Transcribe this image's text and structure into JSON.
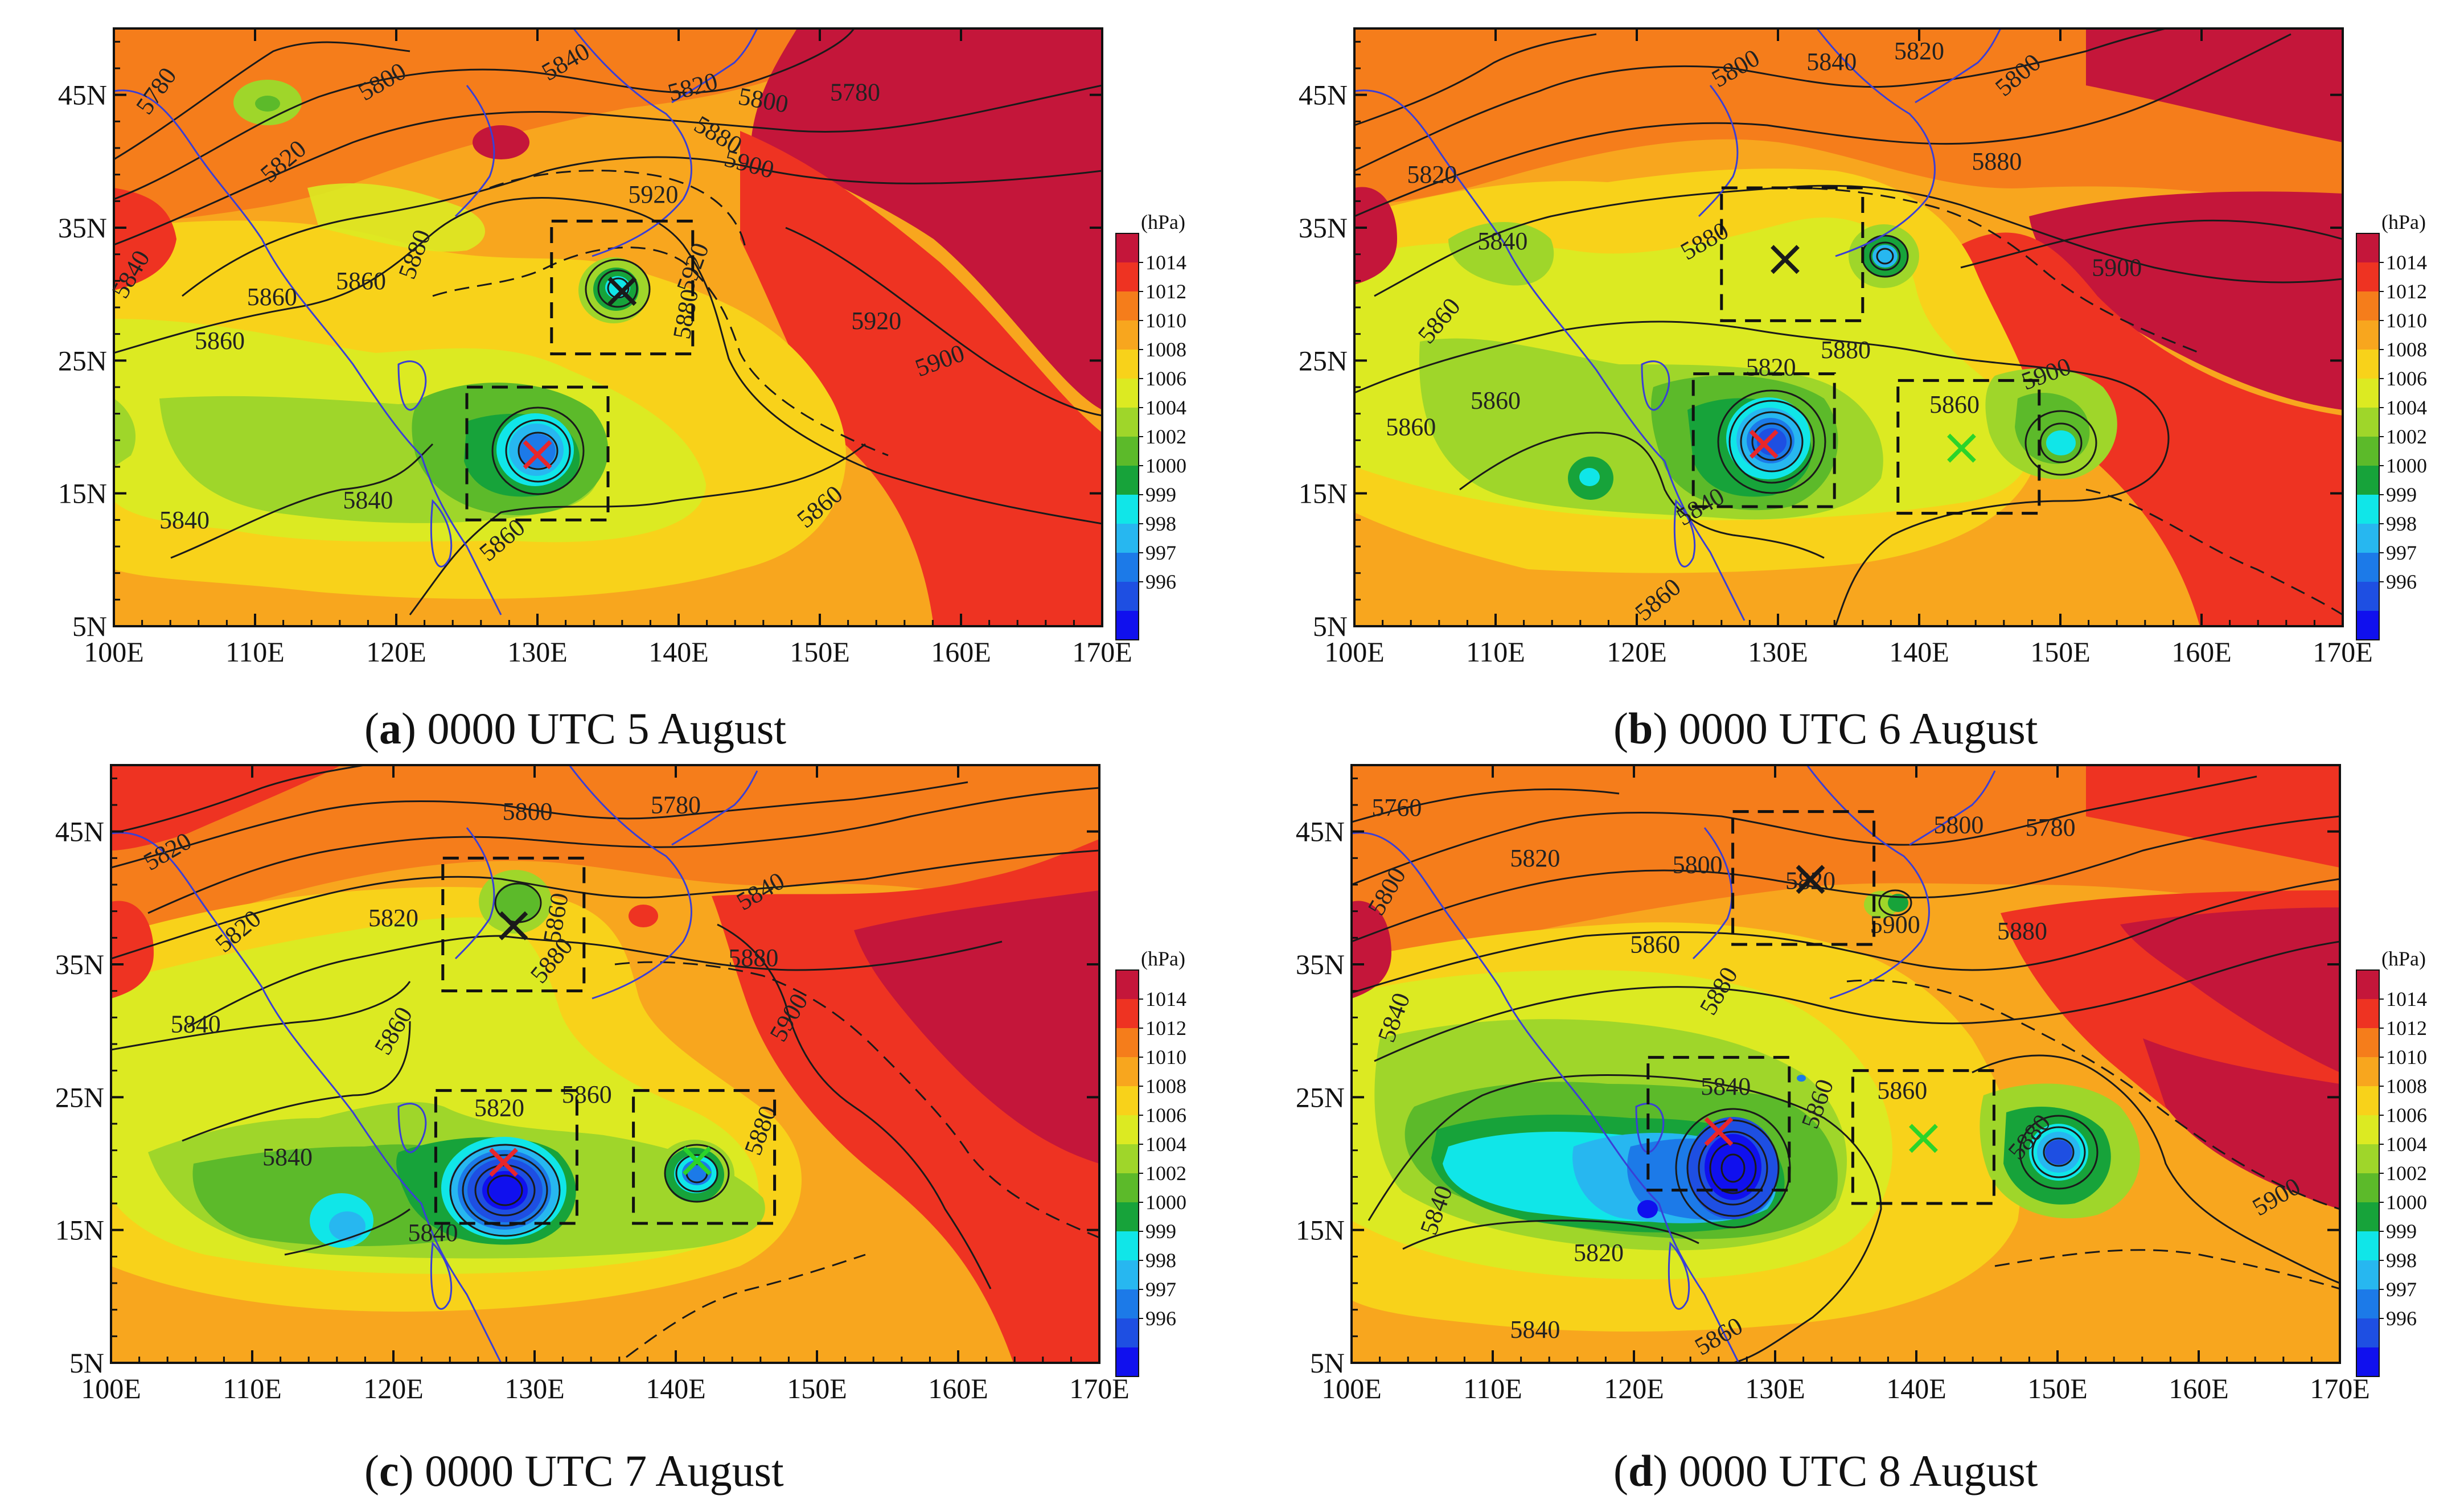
{
  "figure": {
    "colorbar_unit": "(hPa)",
    "colorbar_levels": [
      "1014",
      "1012",
      "1010",
      "1008",
      "1006",
      "1004",
      "1002",
      "1000",
      "999",
      "998",
      "997",
      "996"
    ],
    "colorbar_colors": [
      "#c4163a",
      "#ee3322",
      "#f57d1b",
      "#f8a61e",
      "#f8d21a",
      "#dcea22",
      "#9fd62a",
      "#5cba2a",
      "#17a33a",
      "#10e6e8",
      "#27b7f0",
      "#1c7ae8",
      "#1e4fe2",
      "#1010ee"
    ],
    "x_ticks": [
      "100E",
      "110E",
      "120E",
      "130E",
      "140E",
      "150E",
      "160E",
      "170E"
    ],
    "y_ticks": [
      "45N",
      "35N",
      "25N",
      "15N",
      "5N"
    ],
    "lon_range": [
      100,
      170
    ],
    "lat_range": [
      5,
      50
    ],
    "marker": "×",
    "marker_colors": {
      "red": "#e8262b",
      "green": "#2bd42a",
      "black": "#1a1a1a"
    }
  },
  "panels": [
    {
      "id": "a",
      "tag": "a",
      "time": "0000 UTC 5 August",
      "contour_labels": [
        {
          "text": "5780",
          "lon": 103,
          "lat": 45.3,
          "rot": -55
        },
        {
          "text": "5800",
          "lon": 119,
          "lat": 46,
          "rot": -30
        },
        {
          "text": "5840",
          "lon": 132,
          "lat": 47.5,
          "rot": -30
        },
        {
          "text": "5820",
          "lon": 141,
          "lat": 45.6,
          "rot": -15
        },
        {
          "text": "5800",
          "lon": 146,
          "lat": 44.6,
          "rot": 10
        },
        {
          "text": "5780",
          "lon": 152.5,
          "lat": 45.2,
          "rot": 0
        },
        {
          "text": "5880",
          "lon": 142.8,
          "lat": 42,
          "rot": 30
        },
        {
          "text": "5900",
          "lon": 145,
          "lat": 39.8,
          "rot": 15
        },
        {
          "text": "5820",
          "lon": 112,
          "lat": 40,
          "rot": -40
        },
        {
          "text": "5920",
          "lon": 138.2,
          "lat": 37.5,
          "rot": 0
        },
        {
          "text": "5840",
          "lon": 101.2,
          "lat": 31.5,
          "rot": -60
        },
        {
          "text": "5860",
          "lon": 111.2,
          "lat": 29.8,
          "rot": 0
        },
        {
          "text": "5860",
          "lon": 117.5,
          "lat": 31,
          "rot": 0
        },
        {
          "text": "5880",
          "lon": 121.3,
          "lat": 33,
          "rot": -70
        },
        {
          "text": "5860",
          "lon": 107.5,
          "lat": 26.5,
          "rot": 0
        },
        {
          "text": "5920",
          "lon": 154,
          "lat": 28,
          "rot": 0
        },
        {
          "text": "5900",
          "lon": 158.5,
          "lat": 25,
          "rot": -20
        },
        {
          "text": "5880",
          "lon": 140.5,
          "lat": 28.5,
          "rot": -80
        },
        {
          "text": "5920",
          "lon": 141,
          "lat": 32,
          "rot": -70
        },
        {
          "text": "5840",
          "lon": 118,
          "lat": 14.5,
          "rot": 0
        },
        {
          "text": "5840",
          "lon": 105,
          "lat": 13,
          "rot": 0
        },
        {
          "text": "5860",
          "lon": 127.5,
          "lat": 11.5,
          "rot": -40
        },
        {
          "text": "5860",
          "lon": 150,
          "lat": 14,
          "rot": -40
        }
      ],
      "boxes": [
        [
          131,
          141,
          25.5,
          35.5
        ],
        [
          125,
          135,
          13,
          23
        ]
      ],
      "markers": [
        {
          "lon": 136,
          "lat": 30.3,
          "color": "black"
        },
        {
          "lon": 130,
          "lat": 18,
          "color": "red"
        }
      ]
    },
    {
      "id": "b",
      "tag": "b",
      "time": "0000 UTC 6 August",
      "contour_labels": [
        {
          "text": "5800",
          "lon": 127,
          "lat": 47,
          "rot": -30
        },
        {
          "text": "5840",
          "lon": 133.8,
          "lat": 47.5,
          "rot": 0
        },
        {
          "text": "5820",
          "lon": 140,
          "lat": 48.3,
          "rot": 0
        },
        {
          "text": "5800",
          "lon": 147,
          "lat": 46.5,
          "rot": -40
        },
        {
          "text": "5880",
          "lon": 145.5,
          "lat": 40,
          "rot": 0
        },
        {
          "text": "5820",
          "lon": 105.5,
          "lat": 39,
          "rot": 0
        },
        {
          "text": "5840",
          "lon": 110.5,
          "lat": 34,
          "rot": 0
        },
        {
          "text": "5880",
          "lon": 124.8,
          "lat": 34,
          "rot": -30
        },
        {
          "text": "5900",
          "lon": 154,
          "lat": 32,
          "rot": 0
        },
        {
          "text": "5860",
          "lon": 106,
          "lat": 28,
          "rot": -50
        },
        {
          "text": "5880",
          "lon": 134.8,
          "lat": 25.8,
          "rot": 0
        },
        {
          "text": "5900",
          "lon": 149,
          "lat": 24,
          "rot": -20
        },
        {
          "text": "5820",
          "lon": 129.5,
          "lat": 24.5,
          "rot": 0
        },
        {
          "text": "5860",
          "lon": 142.5,
          "lat": 21.7,
          "rot": 0
        },
        {
          "text": "5860",
          "lon": 104,
          "lat": 20,
          "rot": 0
        },
        {
          "text": "5860",
          "lon": 110,
          "lat": 22,
          "rot": 0
        },
        {
          "text": "5840",
          "lon": 124.5,
          "lat": 14,
          "rot": -30
        },
        {
          "text": "5860",
          "lon": 121.5,
          "lat": 7,
          "rot": -40
        }
      ],
      "boxes": [
        [
          126,
          136,
          28,
          38
        ],
        [
          124,
          134,
          14,
          24
        ],
        [
          138.5,
          148.5,
          13.5,
          23.5
        ]
      ],
      "markers": [
        {
          "lon": 130.5,
          "lat": 32.7,
          "color": "black"
        },
        {
          "lon": 129,
          "lat": 18.8,
          "color": "red"
        },
        {
          "lon": 143,
          "lat": 18.5,
          "color": "green"
        }
      ]
    },
    {
      "id": "c",
      "tag": "c",
      "time": "0000 UTC 7 August",
      "contour_labels": [
        {
          "text": "5800",
          "lon": 129.5,
          "lat": 46.5,
          "rot": 0
        },
        {
          "text": "5780",
          "lon": 140,
          "lat": 47,
          "rot": 0
        },
        {
          "text": "5820",
          "lon": 104,
          "lat": 43.5,
          "rot": -30
        },
        {
          "text": "5840",
          "lon": 146,
          "lat": 40.5,
          "rot": -30
        },
        {
          "text": "5820",
          "lon": 109,
          "lat": 37.5,
          "rot": -40
        },
        {
          "text": "5820",
          "lon": 120,
          "lat": 38.5,
          "rot": 0
        },
        {
          "text": "5860",
          "lon": 131.5,
          "lat": 38.5,
          "rot": -80
        },
        {
          "text": "5880",
          "lon": 131.2,
          "lat": 35.3,
          "rot": -50
        },
        {
          "text": "5880",
          "lon": 145.5,
          "lat": 35.5,
          "rot": 0
        },
        {
          "text": "5840",
          "lon": 106,
          "lat": 30.5,
          "rot": 0
        },
        {
          "text": "5860",
          "lon": 120,
          "lat": 30,
          "rot": -60
        },
        {
          "text": "5900",
          "lon": 148,
          "lat": 31,
          "rot": -60
        },
        {
          "text": "5820",
          "lon": 127.5,
          "lat": 24.2,
          "rot": 0
        },
        {
          "text": "5860",
          "lon": 133.7,
          "lat": 25.2,
          "rot": 0
        },
        {
          "text": "5880",
          "lon": 146,
          "lat": 22.5,
          "rot": -70
        },
        {
          "text": "5840",
          "lon": 112.5,
          "lat": 20.5,
          "rot": 0
        },
        {
          "text": "5840",
          "lon": 122.8,
          "lat": 14.8,
          "rot": 0
        }
      ],
      "boxes": [
        [
          123.5,
          133.5,
          33,
          43
        ],
        [
          123,
          133,
          15.5,
          25.5
        ],
        [
          137,
          147,
          15.5,
          25.5
        ]
      ],
      "markers": [
        {
          "lon": 128.5,
          "lat": 38,
          "color": "black"
        },
        {
          "lon": 127.8,
          "lat": 20.2,
          "color": "red"
        },
        {
          "lon": 141.5,
          "lat": 20.3,
          "color": "green"
        }
      ]
    },
    {
      "id": "d",
      "tag": "d",
      "time": "0000 UTC 8 August",
      "contour_labels": [
        {
          "text": "5760",
          "lon": 103.2,
          "lat": 46.8,
          "rot": 0
        },
        {
          "text": "5800",
          "lon": 143,
          "lat": 45.5,
          "rot": 0
        },
        {
          "text": "5780",
          "lon": 149.5,
          "lat": 45.3,
          "rot": 0
        },
        {
          "text": "5800",
          "lon": 102.5,
          "lat": 40.5,
          "rot": -60
        },
        {
          "text": "5820",
          "lon": 113,
          "lat": 43,
          "rot": 0
        },
        {
          "text": "5800",
          "lon": 124.5,
          "lat": 42.5,
          "rot": 0
        },
        {
          "text": "5820",
          "lon": 132.5,
          "lat": 41.3,
          "rot": 0
        },
        {
          "text": "5900",
          "lon": 138.5,
          "lat": 38,
          "rot": 0
        },
        {
          "text": "5880",
          "lon": 147.5,
          "lat": 37.5,
          "rot": 0
        },
        {
          "text": "5860",
          "lon": 121.5,
          "lat": 36.5,
          "rot": 0
        },
        {
          "text": "5880",
          "lon": 126,
          "lat": 33,
          "rot": -60
        },
        {
          "text": "5840",
          "lon": 103,
          "lat": 31,
          "rot": -70
        },
        {
          "text": "5840",
          "lon": 126.5,
          "lat": 25.8,
          "rot": 0
        },
        {
          "text": "5860",
          "lon": 133,
          "lat": 24.5,
          "rot": -70
        },
        {
          "text": "5860",
          "lon": 139,
          "lat": 25.5,
          "rot": 0
        },
        {
          "text": "5880",
          "lon": 148,
          "lat": 22,
          "rot": -50
        },
        {
          "text": "5900",
          "lon": 165.5,
          "lat": 17.5,
          "rot": -30
        },
        {
          "text": "5840",
          "lon": 106,
          "lat": 16.5,
          "rot": -70
        },
        {
          "text": "5820",
          "lon": 117.5,
          "lat": 13.3,
          "rot": 0
        },
        {
          "text": "5840",
          "lon": 113,
          "lat": 7.5,
          "rot": 0
        },
        {
          "text": "5860",
          "lon": 126,
          "lat": 7,
          "rot": -30
        }
      ],
      "boxes": [
        [
          127,
          137,
          36.5,
          46.5
        ],
        [
          121,
          131,
          18,
          28
        ],
        [
          135.5,
          145.5,
          17,
          27
        ]
      ],
      "markers": [
        {
          "lon": 132.5,
          "lat": 41.5,
          "color": "black"
        },
        {
          "lon": 126,
          "lat": 22.5,
          "color": "red"
        },
        {
          "lon": 140.5,
          "lat": 22,
          "color": "green"
        }
      ]
    }
  ]
}
